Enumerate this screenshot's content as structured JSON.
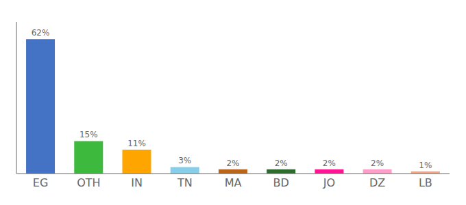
{
  "chart_data": {
    "type": "bar",
    "categories": [
      "EG",
      "OTH",
      "IN",
      "TN",
      "MA",
      "BD",
      "JO",
      "DZ",
      "LB"
    ],
    "values": [
      62,
      15,
      11,
      3,
      2,
      2,
      2,
      2,
      1
    ],
    "value_labels": [
      "62%",
      "15%",
      "11%",
      "3%",
      "2%",
      "2%",
      "2%",
      "2%",
      "1%"
    ],
    "colors": [
      "#4472c4",
      "#3dba3d",
      "#ffa500",
      "#87ceeb",
      "#b8651a",
      "#2e6b2e",
      "#ff1493",
      "#ff9ec8",
      "#f4a582"
    ],
    "ylim": [
      0,
      70
    ],
    "grid": false,
    "data_labels": true,
    "tick_labels": "x"
  }
}
